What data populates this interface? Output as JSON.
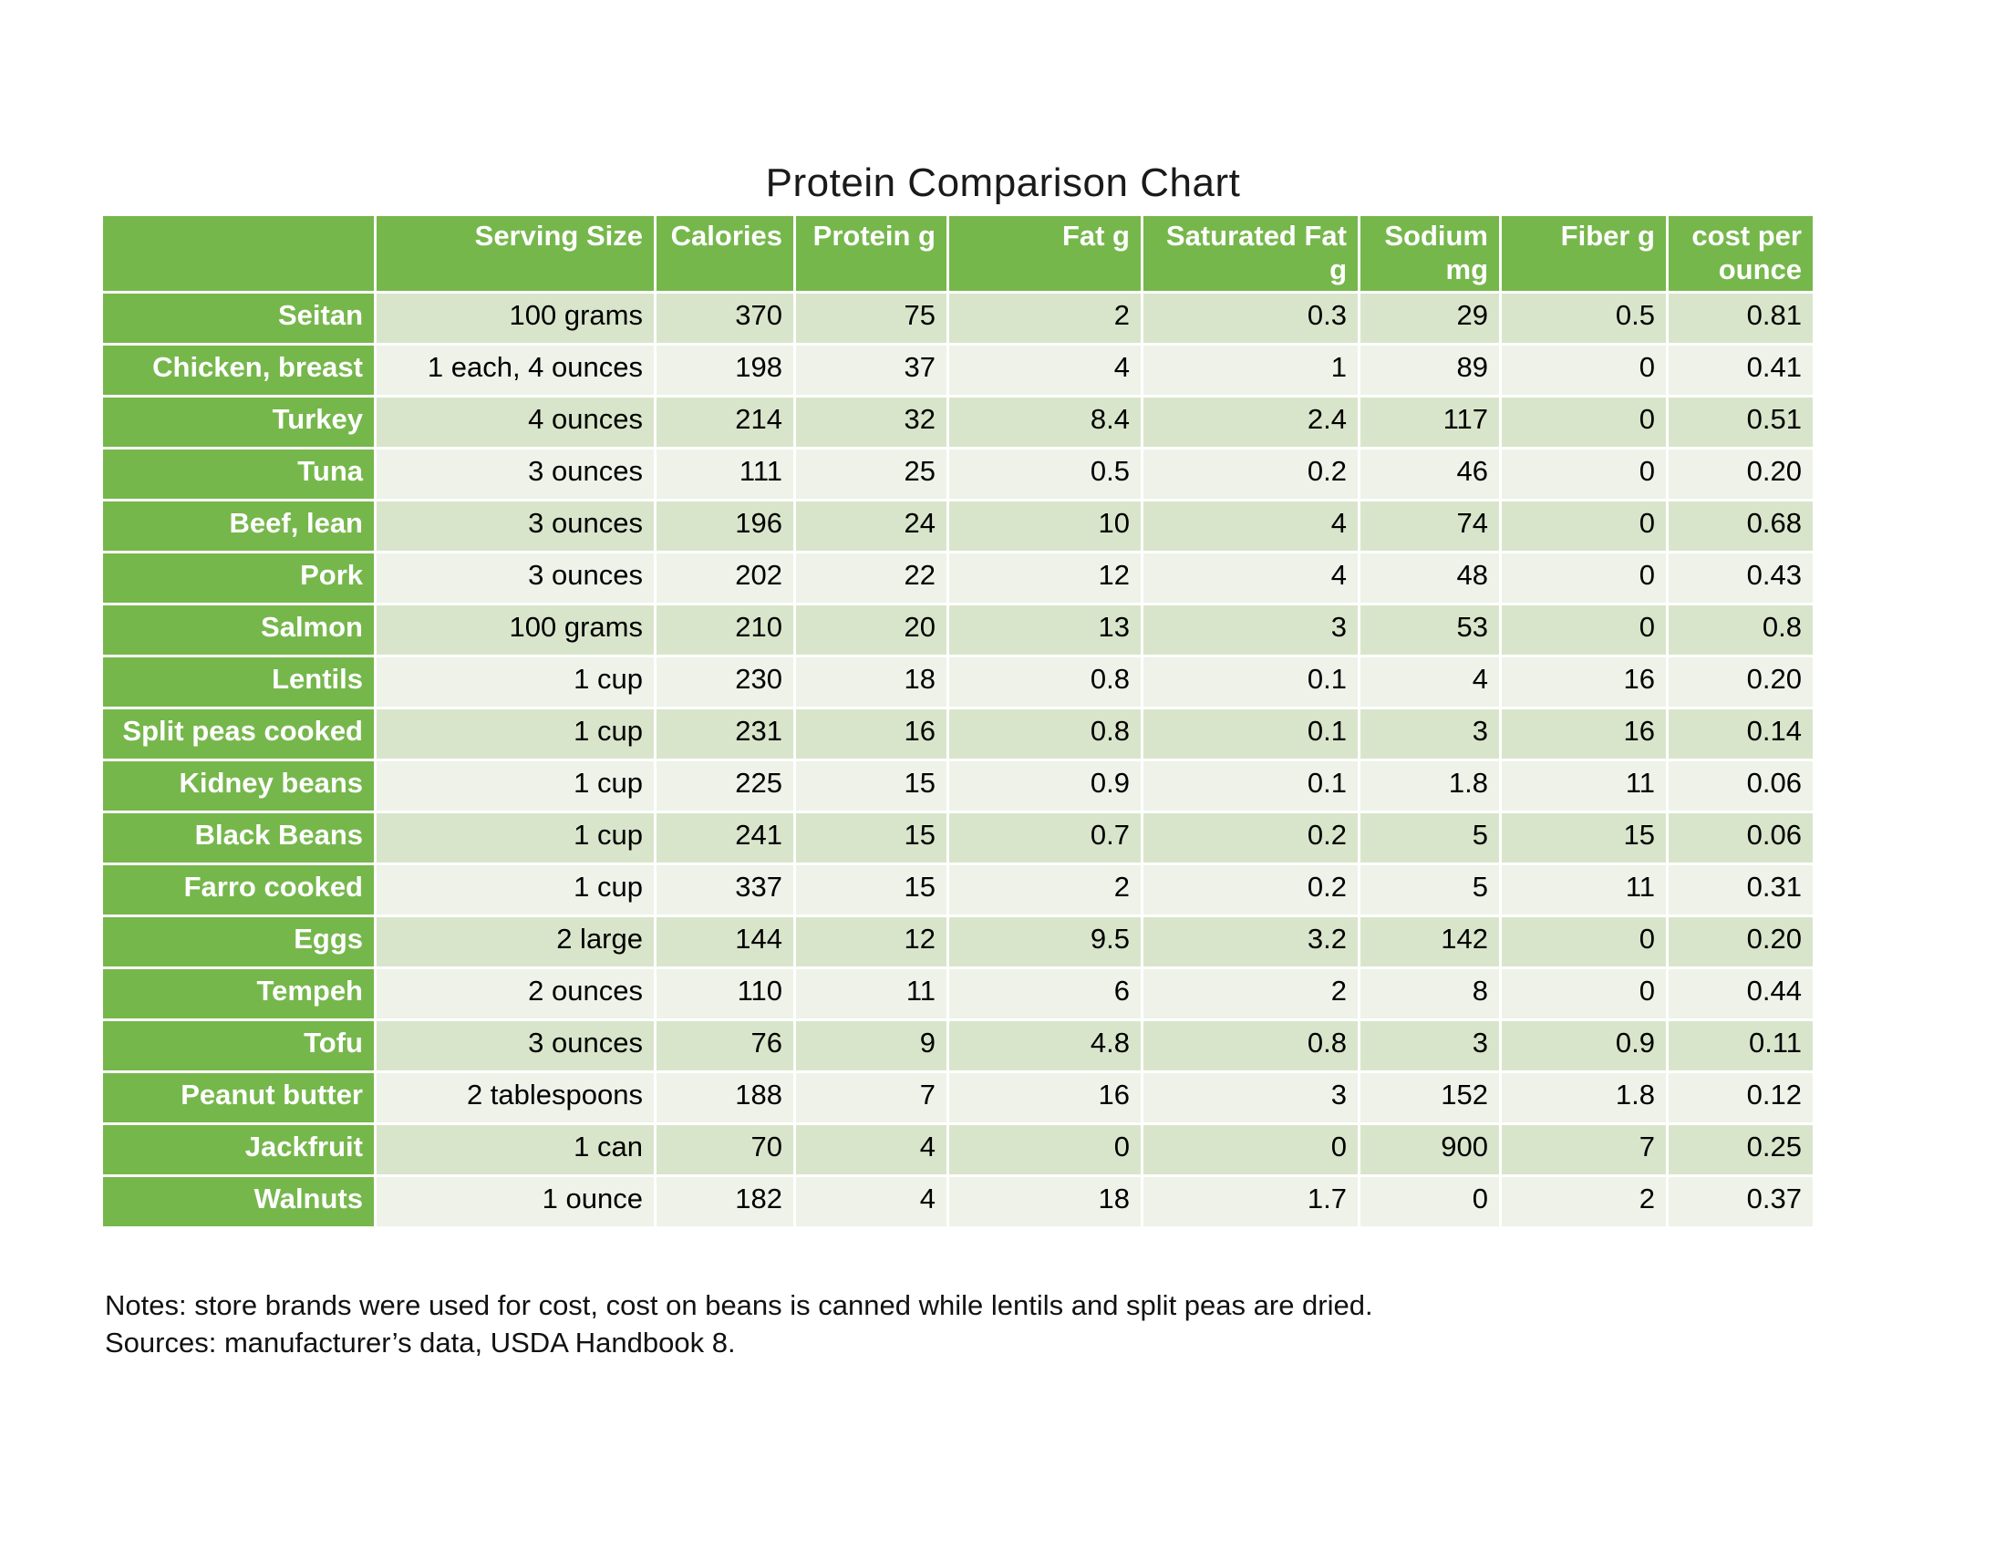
{
  "title": "Protein Comparison Chart",
  "chart_data": {
    "type": "table",
    "columns": [
      "",
      "Serving Size",
      "Calories",
      "Protein g",
      "Fat g",
      "Saturated Fat g",
      "Sodium mg",
      "Fiber g",
      "cost per ounce"
    ],
    "rows": [
      [
        "Seitan",
        "100 grams",
        "370",
        "75",
        "2",
        "0.3",
        "29",
        "0.5",
        "0.81"
      ],
      [
        "Chicken, breast",
        "1 each, 4 ounces",
        "198",
        "37",
        "4",
        "1",
        "89",
        "0",
        "0.41"
      ],
      [
        "Turkey",
        "4 ounces",
        "214",
        "32",
        "8.4",
        "2.4",
        "117",
        "0",
        "0.51"
      ],
      [
        "Tuna",
        "3 ounces",
        "111",
        "25",
        "0.5",
        "0.2",
        "46",
        "0",
        "0.20"
      ],
      [
        "Beef, lean",
        "3 ounces",
        "196",
        "24",
        "10",
        "4",
        "74",
        "0",
        "0.68"
      ],
      [
        "Pork",
        "3 ounces",
        "202",
        "22",
        "12",
        "4",
        "48",
        "0",
        "0.43"
      ],
      [
        "Salmon",
        "100 grams",
        "210",
        "20",
        "13",
        "3",
        "53",
        "0",
        "0.8"
      ],
      [
        "Lentils",
        "1 cup",
        "230",
        "18",
        "0.8",
        "0.1",
        "4",
        "16",
        "0.20"
      ],
      [
        "Split peas cooked",
        "1 cup",
        "231",
        "16",
        "0.8",
        "0.1",
        "3",
        "16",
        "0.14"
      ],
      [
        "Kidney beans",
        "1 cup",
        "225",
        "15",
        "0.9",
        "0.1",
        "1.8",
        "11",
        "0.06"
      ],
      [
        "Black Beans",
        "1 cup",
        "241",
        "15",
        "0.7",
        "0.2",
        "5",
        "15",
        "0.06"
      ],
      [
        "Farro cooked",
        "1 cup",
        "337",
        "15",
        "2",
        "0.2",
        "5",
        "11",
        "0.31"
      ],
      [
        "Eggs",
        "2 large",
        "144",
        "12",
        "9.5",
        "3.2",
        "142",
        "0",
        "0.20"
      ],
      [
        "Tempeh",
        "2 ounces",
        "110",
        "11",
        "6",
        "2",
        "8",
        "0",
        "0.44"
      ],
      [
        "Tofu",
        "3 ounces",
        "76",
        "9",
        "4.8",
        "0.8",
        "3",
        "0.9",
        "0.11"
      ],
      [
        "Peanut butter",
        "2 tablespoons",
        "188",
        "7",
        "16",
        "3",
        "152",
        "1.8",
        "0.12"
      ],
      [
        "Jackfruit",
        "1 can",
        "70",
        "4",
        "0",
        "0",
        "900",
        "7",
        "0.25"
      ],
      [
        "Walnuts",
        "1 ounce",
        "182",
        "4",
        "18",
        "1.7",
        "0",
        "2",
        "0.37"
      ]
    ]
  },
  "notes": "Notes: store brands were used for cost, cost on beans is canned while lentils and split peas are dried.",
  "sources": "Sources: manufacturer’s data, USDA Handbook 8.",
  "colors": {
    "header_green": "#76b74c",
    "row_dark": "#d9e5cb",
    "row_light": "#eef2e9",
    "header_text": "#ffffff",
    "text_dark": "#000000"
  }
}
